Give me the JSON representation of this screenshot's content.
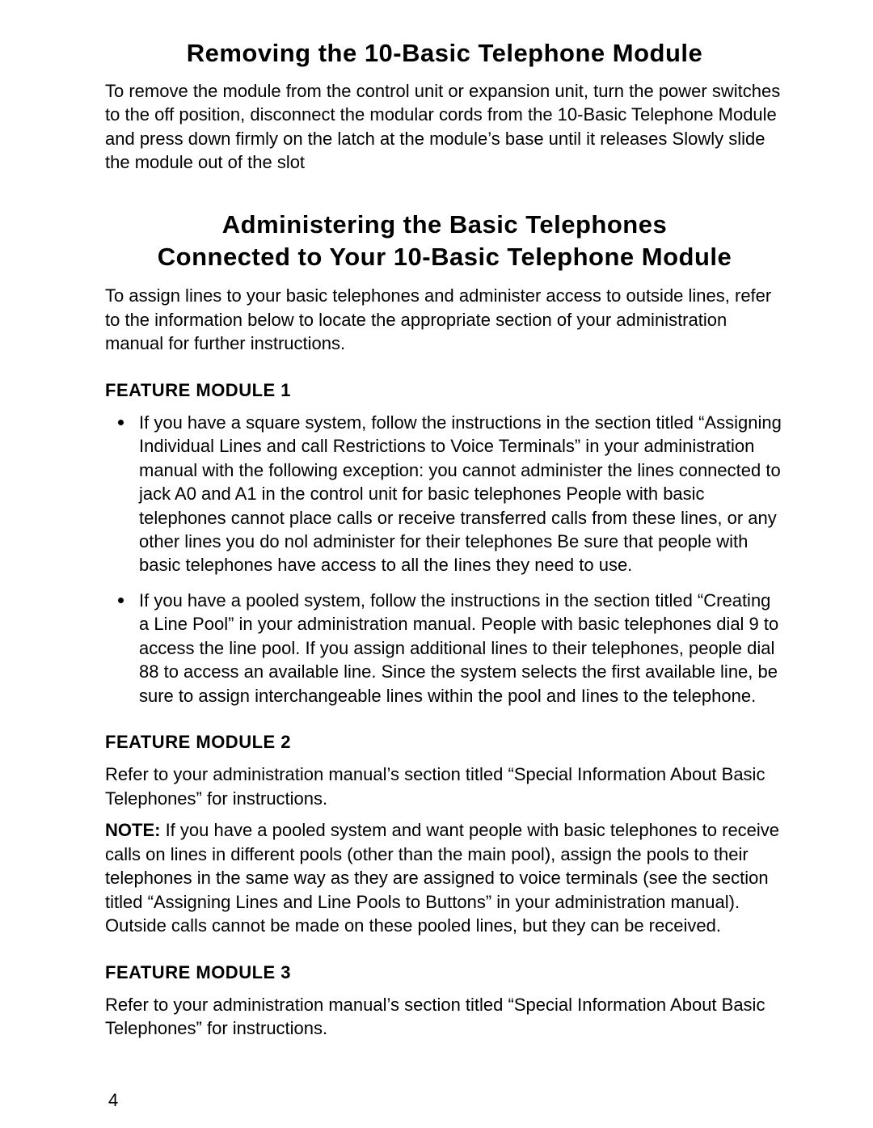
{
  "page": {
    "title1": "Removing the 10-Basic Telephone Module",
    "para1": "To remove the module from the control unit or expansion unit, turn the power switches to the off position, disconnect the modular cords from the 10-Basic Telephone Module and press down firmly on the latch at the module’s base until it releases Slowly slide the module out of the slot",
    "title2_line1": "Administering the Basic Telephones",
    "title2_line2": "Connected to Your 10-Basic Telephone Module",
    "para2": "To assign lines to your basic telephones and administer access to outside lines, refer to the information below to locate the appropriate section of your administration manual for further instructions.",
    "fm1_heading": "FEATURE MODULE 1",
    "fm1_item1": "If you have a square system, follow the instructions in the section titled “Assigning Individual Lines and call Restrictions to Voice Terminals” in your administration manual with the following exception: you cannot administer the lines connected to jack A0 and A1 in the control unit for basic telephones People with basic telephones cannot place calls or receive transferred calls from these lines, or any other lines you do nol administer for their telephones Be sure that people with basic telephones have access to all the Iines they need to use.",
    "fm1_item2": "If you have a pooled system, follow the instructions in the section titled “Creating a Line Pool” in your administration manual. People with basic telephones dial 9 to access the line pool. If you assign additional lines to their telephones, people dial 88 to access an available line. Since the system selects the first available line, be sure to assign interchangeable lines within the pool and Iines to the telephone.",
    "fm2_heading": "FEATURE MODULE 2",
    "fm2_para1": "Refer to your administration manual’s section titled “Special Information About Basic Telephones” for instructions.",
    "fm2_note_label": "NOTE:",
    "fm2_note_body": "  If you have a pooled system and want people with basic telephones to receive calls on lines in different pools (other than the main pool), assign the pools to their telephones in the same way as they are assigned to voice terminals (see the section titled “Assigning Lines and Line Pools to Buttons” in your administration manual). Outside calls cannot be made on these pooled lines, but they can be received.",
    "fm3_heading": "FEATURE MODULE 3",
    "fm3_para": "Refer to your administration manual’s section titled “Special Information About Basic Telephones” for instructions.",
    "page_number": "4"
  },
  "style": {
    "background_color": "#ffffff",
    "text_color": "#000000",
    "heading_fontsize_pt": 23,
    "body_fontsize_pt": 16,
    "font_family": "Arial"
  }
}
